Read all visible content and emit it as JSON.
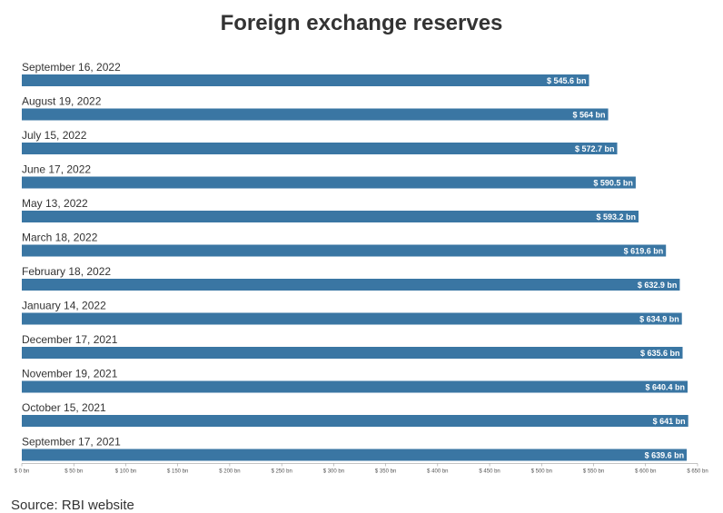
{
  "source": "Source: RBI website",
  "colors": {
    "bar": "#3a76a3",
    "axis": "#888888"
  },
  "chart_data": {
    "type": "bar",
    "orientation": "horizontal",
    "title": "Foreign exchange reserves",
    "categories": [
      "September 16, 2022",
      "August 19, 2022",
      "July 15, 2022",
      "June 17, 2022",
      "May 13, 2022",
      "March 18, 2022",
      "February 18, 2022",
      "January 14, 2022",
      "December 17, 2021",
      "November 19, 2021",
      "October 15, 2021",
      "September 17, 2021"
    ],
    "values": [
      545.6,
      564,
      572.7,
      590.5,
      593.2,
      619.6,
      632.9,
      634.9,
      635.6,
      640.4,
      641,
      639.6
    ],
    "value_labels": [
      "$ 545.6 bn",
      "$ 564 bn",
      "$ 572.7 bn",
      "$ 590.5 bn",
      "$ 593.2 bn",
      "$ 619.6 bn",
      "$ 632.9 bn",
      "$ 634.9 bn",
      "$ 635.6 bn",
      "$ 640.4 bn",
      "$ 641 bn",
      "$ 639.6 bn"
    ],
    "xlim": [
      0,
      650
    ],
    "xticks": [
      0,
      50,
      100,
      150,
      200,
      250,
      300,
      350,
      400,
      450,
      500,
      550,
      600,
      650
    ],
    "xtick_labels": [
      "$ 0 bn",
      "$ 50 bn",
      "$ 100 bn",
      "$ 150 bn",
      "$ 200 bn",
      "$ 250 bn",
      "$ 300 bn",
      "$ 350 bn",
      "$ 400 bn",
      "$ 450 bn",
      "$ 500 bn",
      "$ 550 bn",
      "$ 600 bn",
      "$ 650 bn"
    ],
    "xlabel": "",
    "ylabel": "",
    "grid": false,
    "legend": "none"
  }
}
